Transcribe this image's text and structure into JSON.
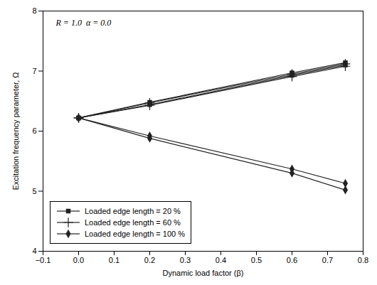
{
  "chart_data": {
    "type": "line",
    "annotation": "R = 1.0  α = 0.0",
    "xlabel": "Dynamic load factor (β)",
    "ylabel": "Excitation frequency parameter, Ω",
    "xlim": [
      -0.1,
      0.8
    ],
    "ylim": [
      4,
      8
    ],
    "xticks": [
      -0.1,
      {
        "value": 0.0,
        "label": "0.0"
      },
      0.1,
      0.2,
      0.3,
      0.4,
      0.5,
      0.6,
      0.7,
      0.8
    ],
    "yticks": [
      4,
      5,
      6,
      7,
      8
    ],
    "color": "#222222",
    "legend": "lower left",
    "grid": false,
    "x": [
      0.0,
      0.2,
      0.6,
      0.75
    ],
    "series": [
      {
        "name": "Loaded edge length = 20 %",
        "marker": "square",
        "values_upper": [
          6.22,
          6.48,
          6.97,
          7.14
        ],
        "values_lower": [
          6.22,
          6.44,
          6.93,
          7.1
        ]
      },
      {
        "name": "Loaded edge length = 60 %",
        "marker": "plus",
        "values_upper": [
          6.22,
          6.47,
          6.95,
          7.12
        ],
        "values_lower": [
          6.22,
          6.43,
          6.91,
          7.08
        ]
      },
      {
        "name": "Loaded edge length = 100 %",
        "marker": "diamond",
        "values_upper": [
          6.22,
          5.92,
          5.37,
          5.13
        ],
        "values_lower": [
          6.22,
          5.88,
          5.3,
          5.02
        ]
      }
    ]
  }
}
